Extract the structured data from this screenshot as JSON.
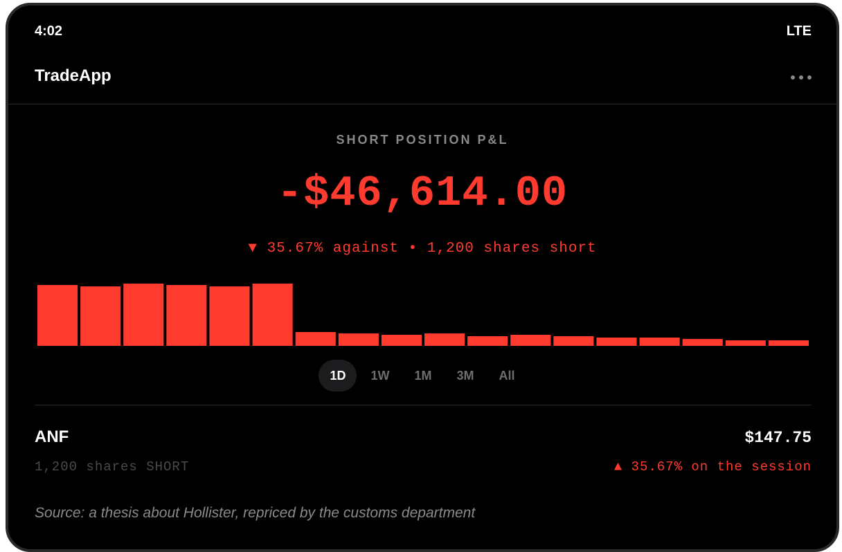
{
  "status_bar": {
    "time": "4:02",
    "network": "LTE"
  },
  "header": {
    "title": "TradeApp",
    "more_icon": "more-horizontal-icon"
  },
  "position": {
    "label": "SHORT POSITION P&L",
    "pnl": "-$46,614.00",
    "summary": "▼ 35.67% against • 1,200 shares short"
  },
  "chart_data": {
    "type": "bar",
    "values": [
      88,
      86,
      90,
      88,
      86,
      90,
      20,
      18,
      16,
      18,
      14,
      16,
      14,
      12,
      12,
      10,
      8,
      8
    ],
    "ylim": [
      0,
      100
    ],
    "color": "#ff3b30",
    "grid": false,
    "legend": "none"
  },
  "range_tabs": [
    {
      "label": "1D",
      "active": true
    },
    {
      "label": "1W",
      "active": false
    },
    {
      "label": "1M",
      "active": false
    },
    {
      "label": "3M",
      "active": false
    },
    {
      "label": "All",
      "active": false
    }
  ],
  "holding": {
    "ticker": "ANF",
    "price": "$147.75",
    "shares": "1,200 shares SHORT",
    "session_change": "▲ 35.67% on the session"
  },
  "source": "Source: a thesis about Hollister, repriced by the customs department",
  "colors": {
    "accent": "#ff3b30",
    "background": "#000000",
    "muted": "#8a8a8a"
  }
}
